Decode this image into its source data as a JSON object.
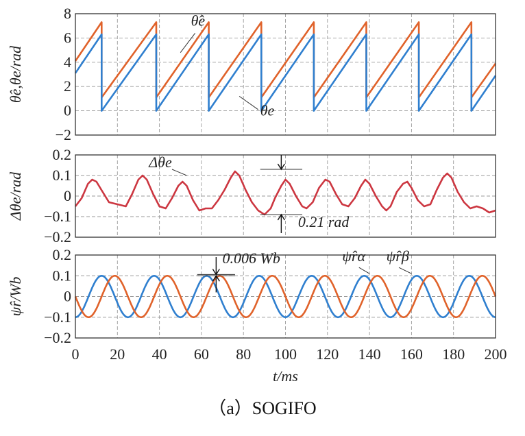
{
  "figure": {
    "caption": "（a）SOGIFO",
    "xlabel": "t/ms",
    "x_ticks": [
      "0",
      "20",
      "40",
      "60",
      "80",
      "100",
      "120",
      "140",
      "160",
      "180",
      "200"
    ]
  },
  "chart_data": [
    {
      "type": "line",
      "ylabel": "θ̂e,θe/rad",
      "xlim": [
        0,
        200
      ],
      "ylim": [
        -2,
        8
      ],
      "y_ticks": [
        "8",
        "6",
        "4",
        "2",
        "0",
        "−2"
      ],
      "grid": true,
      "colors": {
        "estimated": "#e0622a",
        "actual": "#2f7fcf"
      },
      "series": [
        {
          "name": "θ̂e",
          "color": "#e0622a",
          "points": [
            [
              0,
              4.1
            ],
            [
              12.5,
              7.3
            ],
            [
              12.5,
              1.1
            ],
            [
              38.5,
              7.3
            ],
            [
              38.5,
              1.1
            ],
            [
              63.5,
              7.3
            ],
            [
              63.5,
              1.1
            ],
            [
              88.5,
              7.3
            ],
            [
              88.5,
              1.1
            ],
            [
              113.5,
              7.3
            ],
            [
              113.5,
              1.1
            ],
            [
              138.5,
              7.3
            ],
            [
              138.5,
              1.1
            ],
            [
              163.5,
              7.3
            ],
            [
              163.5,
              1.1
            ],
            [
              188.5,
              7.3
            ],
            [
              188.5,
              1.1
            ],
            [
              200,
              3.9
            ]
          ]
        },
        {
          "name": "θe",
          "color": "#2f7fcf",
          "points": [
            [
              0,
              3.1
            ],
            [
              12.5,
              6.3
            ],
            [
              12.5,
              0.0
            ],
            [
              38.5,
              6.3
            ],
            [
              38.5,
              0.0
            ],
            [
              63.5,
              6.3
            ],
            [
              63.5,
              0.0
            ],
            [
              88.5,
              6.3
            ],
            [
              88.5,
              0.0
            ],
            [
              113.5,
              6.3
            ],
            [
              113.5,
              0.0
            ],
            [
              138.5,
              6.3
            ],
            [
              138.5,
              0.0
            ],
            [
              163.5,
              6.3
            ],
            [
              163.5,
              0.0
            ],
            [
              188.5,
              6.3
            ],
            [
              188.5,
              0.0
            ],
            [
              200,
              2.9
            ]
          ]
        }
      ],
      "annotations": [
        {
          "text": "θ̂e",
          "x": 55,
          "y": 7.0
        },
        {
          "text": "θe",
          "x": 88,
          "y": -0.4
        }
      ]
    },
    {
      "type": "line",
      "ylabel": "Δθe/rad",
      "xlim": [
        0,
        200
      ],
      "ylim": [
        -0.2,
        0.2
      ],
      "y_ticks": [
        "0.2",
        "0.1",
        "0",
        "−0.1",
        "−0.2"
      ],
      "grid": true,
      "series": [
        {
          "name": "Δθe",
          "color": "#cc3640",
          "points": [
            [
              0,
              -0.05
            ],
            [
              3,
              -0.01
            ],
            [
              6,
              0.06
            ],
            [
              8,
              0.08
            ],
            [
              10,
              0.07
            ],
            [
              13,
              0.02
            ],
            [
              16,
              -0.03
            ],
            [
              20,
              -0.04
            ],
            [
              24,
              -0.05
            ],
            [
              27,
              0.01
            ],
            [
              30,
              0.08
            ],
            [
              32,
              0.1
            ],
            [
              34,
              0.08
            ],
            [
              37,
              0.01
            ],
            [
              40,
              -0.05
            ],
            [
              43,
              -0.06
            ],
            [
              46,
              -0.01
            ],
            [
              49,
              0.05
            ],
            [
              51,
              0.07
            ],
            [
              53,
              0.05
            ],
            [
              56,
              -0.02
            ],
            [
              59,
              -0.07
            ],
            [
              62,
              -0.06
            ],
            [
              65,
              -0.06
            ],
            [
              68,
              -0.02
            ],
            [
              71,
              0.03
            ],
            [
              74,
              0.09
            ],
            [
              76,
              0.12
            ],
            [
              78,
              0.1
            ],
            [
              81,
              0.03
            ],
            [
              84,
              -0.03
            ],
            [
              87,
              -0.07
            ],
            [
              90,
              -0.09
            ],
            [
              93,
              -0.06
            ],
            [
              95,
              -0.01
            ],
            [
              98,
              0.05
            ],
            [
              100,
              0.08
            ],
            [
              102,
              0.06
            ],
            [
              105,
              0.0
            ],
            [
              108,
              -0.05
            ],
            [
              110,
              -0.06
            ],
            [
              113,
              -0.03
            ],
            [
              116,
              0.04
            ],
            [
              119,
              0.08
            ],
            [
              121,
              0.07
            ],
            [
              124,
              0.01
            ],
            [
              127,
              -0.04
            ],
            [
              130,
              -0.05
            ],
            [
              133,
              -0.01
            ],
            [
              136,
              0.05
            ],
            [
              138,
              0.08
            ],
            [
              140,
              0.06
            ],
            [
              143,
              0.0
            ],
            [
              146,
              -0.05
            ],
            [
              148,
              -0.07
            ],
            [
              150,
              -0.05
            ],
            [
              153,
              0.02
            ],
            [
              156,
              0.06
            ],
            [
              158,
              0.07
            ],
            [
              160,
              0.04
            ],
            [
              163,
              -0.02
            ],
            [
              166,
              -0.05
            ],
            [
              169,
              -0.04
            ],
            [
              172,
              0.03
            ],
            [
              175,
              0.09
            ],
            [
              177,
              0.11
            ],
            [
              179,
              0.09
            ],
            [
              182,
              0.02
            ],
            [
              185,
              -0.03
            ],
            [
              188,
              -0.06
            ],
            [
              191,
              -0.05
            ],
            [
              194,
              -0.06
            ],
            [
              197,
              -0.08
            ],
            [
              200,
              -0.07
            ]
          ]
        }
      ],
      "annotations": [
        {
          "text": "Δθe",
          "x": 35,
          "y": 0.14
        },
        {
          "text": "0.21 rad",
          "x": 106,
          "y": -0.15
        }
      ]
    },
    {
      "type": "line",
      "ylabel": "ψ̂r/Wb",
      "xlim": [
        0,
        200
      ],
      "ylim": [
        -0.2,
        0.2
      ],
      "y_ticks": [
        "0.2",
        "0.1",
        "0",
        "−0.1",
        "−0.2"
      ],
      "grid": true,
      "series": [
        {
          "name": "ψ̂rα",
          "color": "#2f7fcf",
          "period": 25,
          "amplitude": 0.1,
          "phase_ms": 12.5,
          "shape": "sine"
        },
        {
          "name": "ψ̂rβ",
          "color": "#e0622a",
          "period": 25,
          "amplitude": 0.1,
          "phase_ms": 18.75,
          "shape": "sine"
        }
      ],
      "annotations": [
        {
          "text": "0.006 Wb",
          "x": 70,
          "y": 0.16
        },
        {
          "text": "ψ̂rα",
          "x": 127,
          "y": 0.17
        },
        {
          "text": "ψ̂rβ",
          "x": 148,
          "y": 0.17
        }
      ]
    }
  ]
}
